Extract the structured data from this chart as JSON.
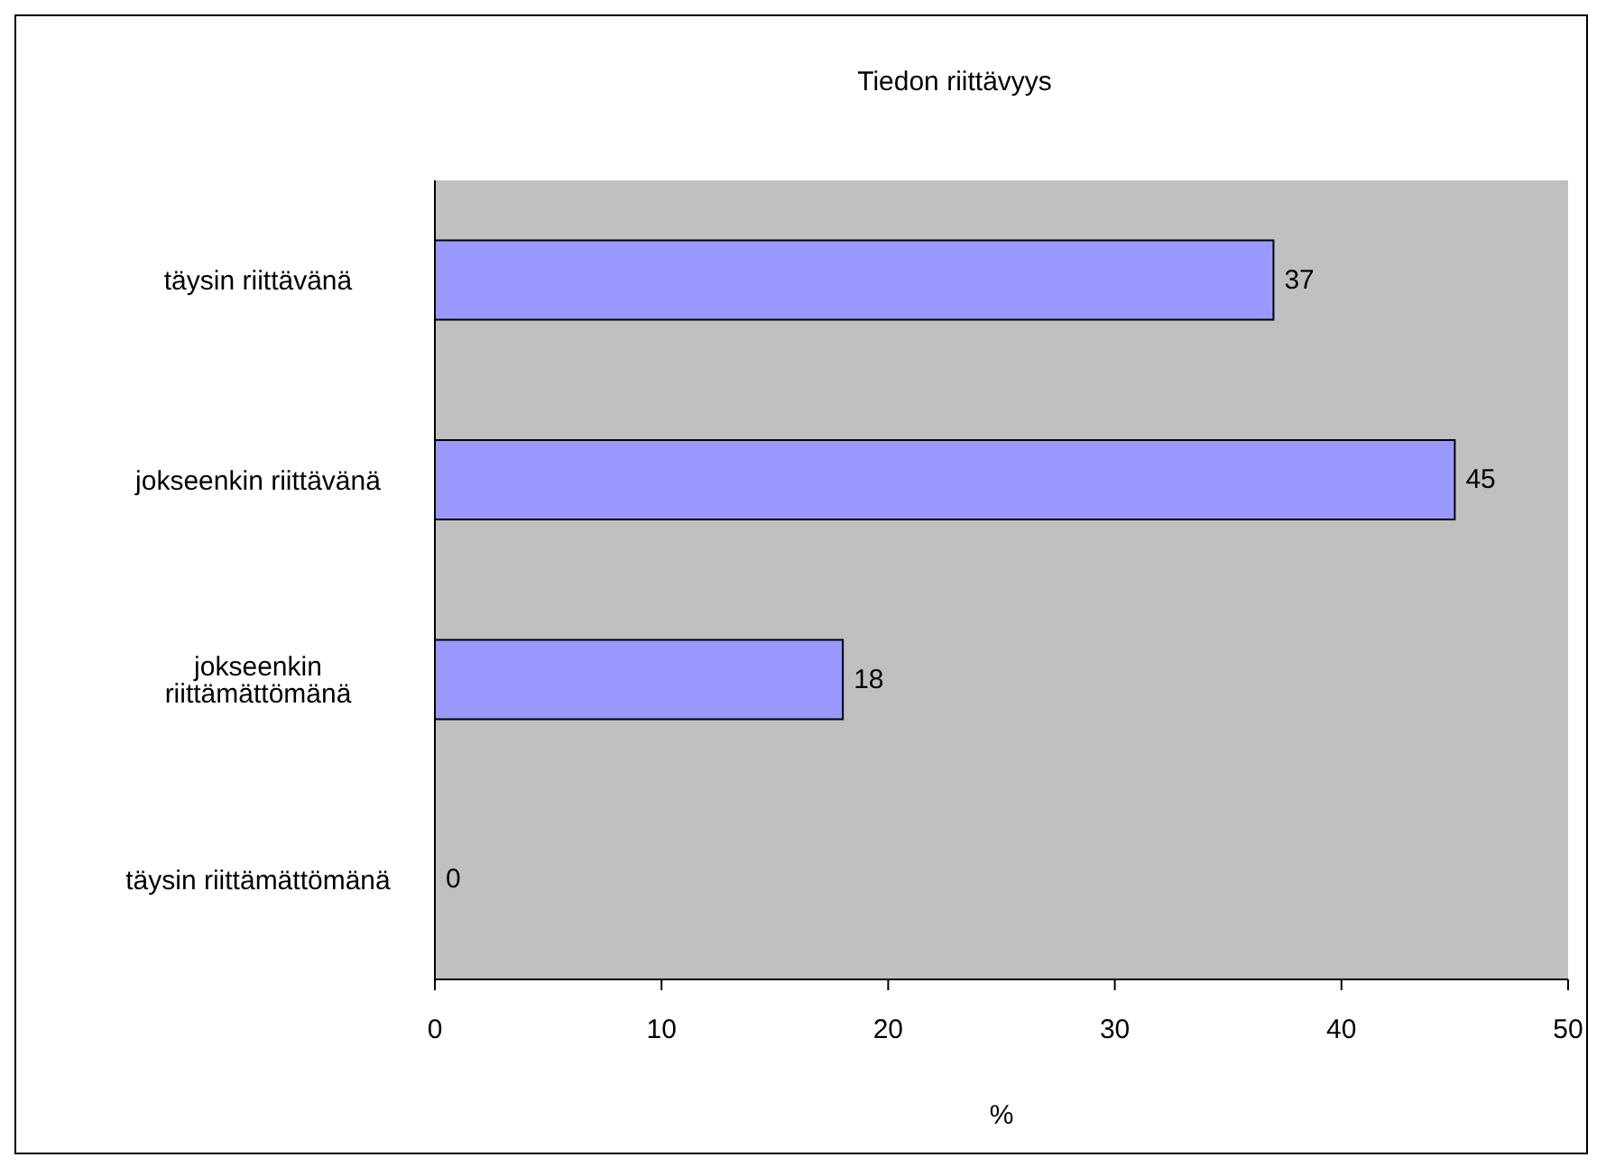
{
  "chart_data": {
    "type": "bar",
    "orientation": "horizontal",
    "title": "Tiedon riittävyys",
    "xlabel": "%",
    "categories": [
      "täysin riittävänä",
      "jokseenkin riittävänä",
      "jokseenkin riittämättömänä",
      "täysin riittämättömänä"
    ],
    "values": [
      37,
      45,
      18,
      0
    ],
    "color": "#9999ff",
    "data_labels": true,
    "xlim": [
      0,
      50
    ],
    "xticks": [
      0,
      10,
      20,
      30,
      40,
      50
    ],
    "grid": false,
    "legend": false
  }
}
